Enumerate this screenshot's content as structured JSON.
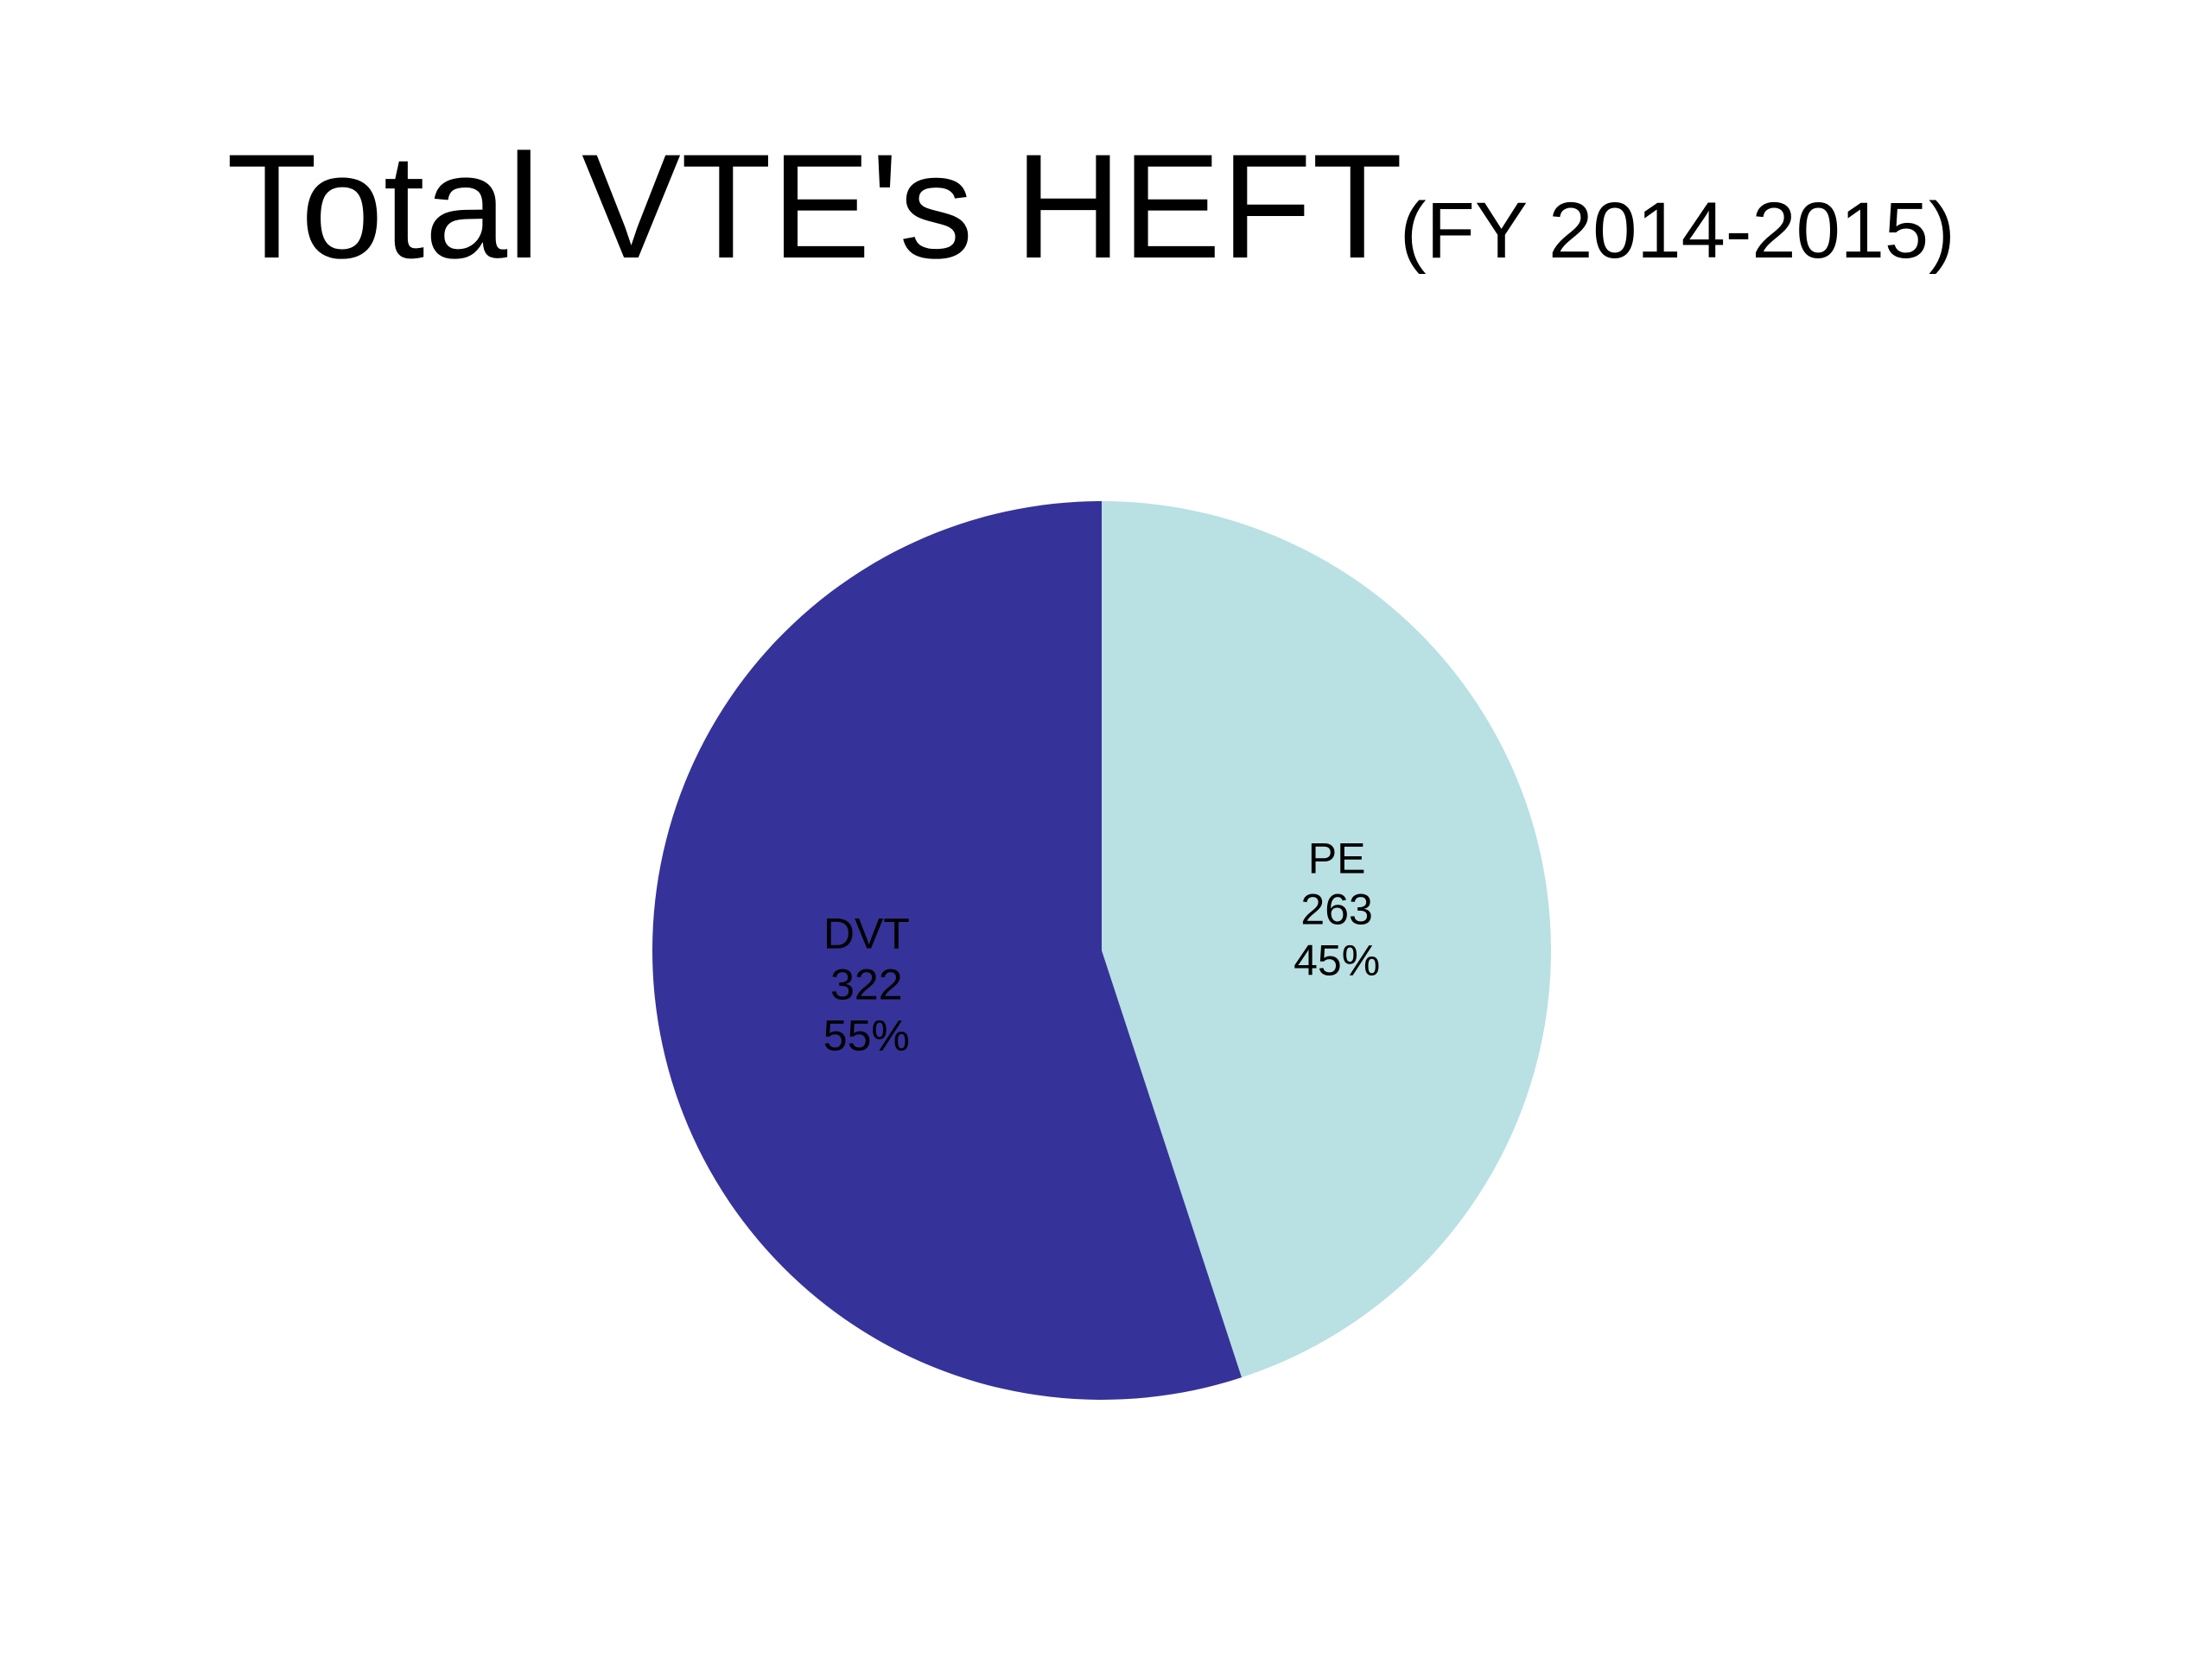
{
  "chart_data": {
    "type": "pie",
    "title": "Total VTE's HEFT",
    "subtitle": "(FY 2014-2015)",
    "categories": [
      "PE",
      "DVT"
    ],
    "values": [
      263,
      322
    ],
    "percent_labels": [
      "45%",
      "55%"
    ],
    "colors": [
      "#b9e0e3",
      "#353399"
    ]
  }
}
